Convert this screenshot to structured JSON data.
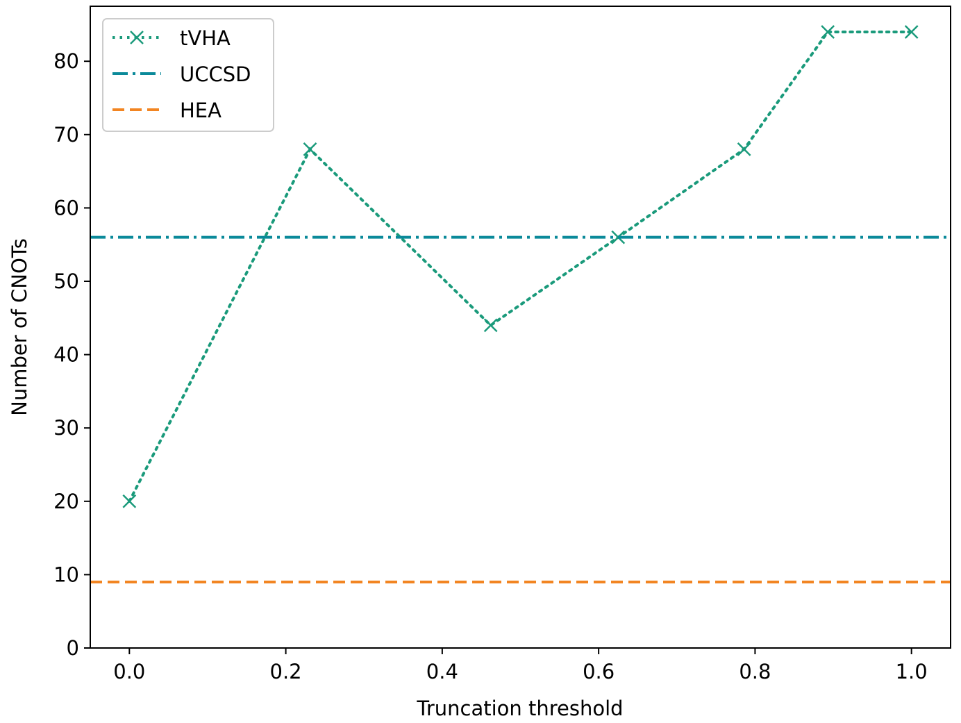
{
  "chart_data": {
    "type": "line",
    "xlabel": "Truncation threshold",
    "ylabel": "Number of CNOTs",
    "xlim": [
      -0.05,
      1.05
    ],
    "ylim": [
      0,
      87.5
    ],
    "xticks": [
      0.0,
      0.2,
      0.4,
      0.6,
      0.8,
      1.0
    ],
    "xtick_labels": [
      "0.0",
      "0.2",
      "0.4",
      "0.6",
      "0.8",
      "1.0"
    ],
    "yticks": [
      0,
      10,
      20,
      30,
      40,
      50,
      60,
      70,
      80
    ],
    "ytick_labels": [
      "0",
      "10",
      "20",
      "30",
      "40",
      "50",
      "60",
      "70",
      "80"
    ],
    "grid": false,
    "legend_position": "top-left",
    "series": [
      {
        "name": "tVHA",
        "style": "dotted",
        "marker": "x",
        "color": "#1a9a7b",
        "x": [
          0.0,
          0.231,
          0.462,
          0.625,
          0.786,
          0.893,
          1.0
        ],
        "values": [
          20,
          68,
          44,
          56,
          68,
          84,
          84
        ]
      },
      {
        "name": "UCCSD",
        "style": "dashdot",
        "color": "#0b8a9a",
        "hline": 56
      },
      {
        "name": "HEA",
        "style": "dashed",
        "color": "#f28522",
        "hline": 9
      }
    ]
  }
}
